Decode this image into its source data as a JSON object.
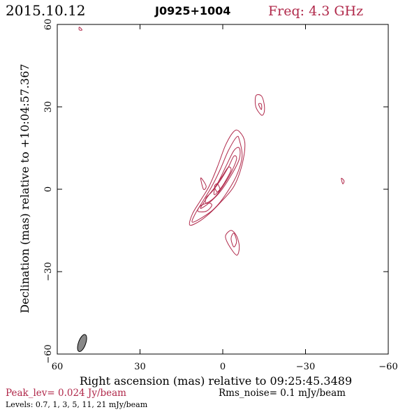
{
  "header": {
    "date": "2015.10.12",
    "source": "J0925+1004",
    "freq": "Freq: 4.3 GHz"
  },
  "footer": {
    "peak": "Peak_lev=  0.024 Jy/beam",
    "rms": "Rms_noise=  0.1 mJy/beam",
    "levels": "Levels: 0.7,   1,   3,   5,  11,  21 mJy/beam"
  },
  "colors": {
    "accent": "#b0284a",
    "ink": "#000000",
    "beam": "#888888"
  },
  "chart_data": {
    "type": "contour",
    "xlabel": "Right ascension (mas) relative to 09:25:45.3489",
    "ylabel": "Declination (mas) relative to +10:04:57.367",
    "xlim": [
      60,
      -60
    ],
    "ylim": [
      -60,
      60
    ],
    "xticks": [
      60,
      30,
      0,
      -30,
      -60
    ],
    "yticks": [
      60,
      30,
      0,
      -30,
      -60
    ],
    "xtick_labels": [
      "60",
      "30",
      "0",
      "−30",
      "−60"
    ],
    "ytick_labels": [
      "60",
      "30",
      "0",
      "−30",
      "−60"
    ],
    "contour_levels_mJy": [
      0.7,
      1,
      3,
      5,
      11,
      21
    ],
    "beam": {
      "x": 51,
      "y": -56,
      "major": 6.5,
      "minor": 2.6,
      "pa": 20
    },
    "contours": [
      {
        "name": "outer-jet",
        "points": [
          [
            12,
            -13
          ],
          [
            9,
            -12
          ],
          [
            5,
            -9
          ],
          [
            1,
            -5
          ],
          [
            -4,
            1
          ],
          [
            -7,
            9
          ],
          [
            -8,
            17
          ],
          [
            -6,
            21
          ],
          [
            -4,
            21
          ],
          [
            -1,
            16
          ],
          [
            2,
            8
          ],
          [
            5,
            1
          ],
          [
            8,
            -4
          ],
          [
            11,
            -9
          ]
        ]
      },
      {
        "name": "jet-lev2",
        "points": [
          [
            11,
            -12
          ],
          [
            7,
            -10
          ],
          [
            3,
            -7
          ],
          [
            -1,
            -2
          ],
          [
            -5,
            5
          ],
          [
            -7,
            12
          ],
          [
            -6,
            18
          ],
          [
            -5,
            19
          ],
          [
            -2,
            14
          ],
          [
            1,
            7
          ],
          [
            4,
            1
          ],
          [
            7,
            -4
          ],
          [
            10,
            -9
          ]
        ]
      },
      {
        "name": "jet-lev3",
        "points": [
          [
            8,
            -7
          ],
          [
            5,
            -5
          ],
          [
            1,
            -1
          ],
          [
            -3,
            5
          ],
          [
            -6,
            11
          ],
          [
            -6,
            15
          ],
          [
            -4,
            14
          ],
          [
            -1,
            8
          ],
          [
            2,
            2
          ],
          [
            5,
            -2
          ],
          [
            7,
            -5
          ]
        ]
      },
      {
        "name": "jet-lev4",
        "points": [
          [
            6,
            -5
          ],
          [
            3,
            -3
          ],
          [
            0,
            1
          ],
          [
            -3,
            6
          ],
          [
            -5,
            11
          ],
          [
            -4,
            12
          ],
          [
            -2,
            8
          ],
          [
            1,
            3
          ],
          [
            4,
            -1
          ],
          [
            6,
            -3
          ]
        ]
      },
      {
        "name": "core-lev5",
        "points": [
          [
            3,
            -2
          ],
          [
            1,
            0
          ],
          [
            -1,
            3
          ],
          [
            -3,
            7
          ],
          [
            -2,
            8
          ],
          [
            0,
            5
          ],
          [
            2,
            2
          ],
          [
            3,
            0
          ]
        ]
      },
      {
        "name": "knot-outer",
        "points": [
          [
            -3,
            -15
          ],
          [
            -5,
            -17
          ],
          [
            -6,
            -21
          ],
          [
            -5,
            -24
          ],
          [
            -2,
            -20
          ],
          [
            -1,
            -17
          ]
        ]
      },
      {
        "name": "knot-inner",
        "points": [
          [
            -4,
            -16
          ],
          [
            -5,
            -19
          ],
          [
            -4,
            -21
          ],
          [
            -3,
            -18
          ]
        ]
      },
      {
        "name": "island-left",
        "points": [
          [
            6,
            1
          ],
          [
            7,
            3
          ],
          [
            8,
            4
          ],
          [
            7,
            0
          ]
        ]
      },
      {
        "name": "island-left-2",
        "points": [
          [
            1,
            0
          ],
          [
            2,
            2
          ],
          [
            3,
            1
          ],
          [
            2,
            -1
          ]
        ]
      },
      {
        "name": "jet-notch",
        "points": [
          [
            9,
            -8
          ],
          [
            6,
            -8
          ],
          [
            4,
            -6
          ],
          [
            5,
            -5
          ],
          [
            8,
            -6
          ]
        ]
      },
      {
        "name": "upper-blob",
        "points": [
          [
            -12,
            34
          ],
          [
            -12,
            30
          ],
          [
            -14,
            27
          ],
          [
            -15,
            28
          ],
          [
            -15,
            31
          ],
          [
            -14,
            34
          ]
        ]
      },
      {
        "name": "upper-blob-inner",
        "points": [
          [
            -13,
            31
          ],
          [
            -14,
            29
          ],
          [
            -14,
            31
          ]
        ]
      },
      {
        "name": "far-right-blob",
        "points": [
          [
            -43,
            4
          ],
          [
            -43.5,
            2
          ],
          [
            -44,
            3
          ]
        ]
      },
      {
        "name": "top-left-blob",
        "points": [
          [
            52,
            59
          ],
          [
            51,
            58
          ],
          [
            52,
            58
          ]
        ]
      }
    ]
  }
}
